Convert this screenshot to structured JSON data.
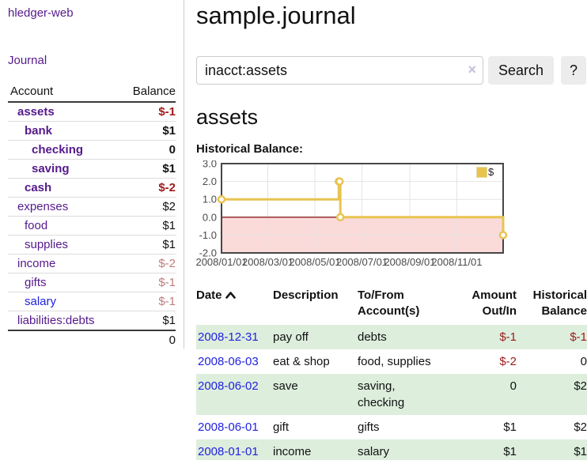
{
  "colors": {
    "link_purple": "#551a8b",
    "link_blue": "#2222dd",
    "negative_strong": "#9e1a1a",
    "negative_soft": "#c07c7c",
    "row_green": "#ddeedd",
    "divider_gray": "#cccccc",
    "button_gray": "#ececec"
  },
  "sidebar": {
    "app_title": "hledger-web",
    "journal_link": "Journal",
    "table": {
      "col_account": "Account",
      "col_balance": "Balance",
      "accounts": [
        {
          "name": "assets",
          "balance": "$-1"
        },
        {
          "name": "bank",
          "balance": "$1"
        },
        {
          "name": "checking",
          "balance": "0"
        },
        {
          "name": "saving",
          "balance": "$1"
        },
        {
          "name": "cash",
          "balance": "$-2"
        },
        {
          "name": "expenses",
          "balance": "$2"
        },
        {
          "name": "food",
          "balance": "$1"
        },
        {
          "name": "supplies",
          "balance": "$1"
        },
        {
          "name": "income",
          "balance": "$-2"
        },
        {
          "name": "gifts",
          "balance": "$-1"
        },
        {
          "name": "salary",
          "balance": "$-1"
        },
        {
          "name": "liabilities:debts",
          "balance": "$1"
        }
      ],
      "total": "0"
    }
  },
  "main": {
    "title": "sample.journal",
    "search": {
      "value": "inacct:assets",
      "clear_icon": "×",
      "search_button": "Search",
      "help_button": "?"
    },
    "account_heading": "assets",
    "chart_heading": "Historical Balance:",
    "register": {
      "columns": {
        "date": "Date",
        "date_sort_icon": "chevron-up",
        "description": "Description",
        "account": "To/From Account(s)",
        "amount": "Amount Out/In",
        "balance": "Historical Balance"
      },
      "rows": [
        {
          "date": "2008-12-31",
          "description": "pay off",
          "account": "debts",
          "amount": "$-1",
          "balance": "$-1"
        },
        {
          "date": "2008-06-03",
          "description": "eat & shop",
          "account": "food, supplies",
          "amount": "$-2",
          "balance": "0"
        },
        {
          "date": "2008-06-02",
          "description": "save",
          "account": "saving,\nchecking",
          "amount": "0",
          "balance": "$2"
        },
        {
          "date": "2008-06-01",
          "description": "gift",
          "account": "gifts",
          "amount": "$1",
          "balance": "$2"
        },
        {
          "date": "2008-01-01",
          "description": "income",
          "account": "salary",
          "amount": "$1",
          "balance": "$1"
        }
      ]
    }
  },
  "chart_data": {
    "type": "line",
    "title": "Historical Balance:",
    "step": true,
    "series": [
      {
        "name": "$",
        "points": [
          [
            "2008/01/01",
            1
          ],
          [
            "2008/06/01",
            2
          ],
          [
            "2008/06/02",
            2
          ],
          [
            "2008/06/03",
            0
          ],
          [
            "2008/12/31",
            -1
          ]
        ]
      }
    ],
    "xrange": [
      "2008/01/01",
      "2008/12/31"
    ],
    "ylim": [
      -2,
      3
    ],
    "x_ticks": [
      "2008/01/01",
      "2008/03/01",
      "2008/05/01",
      "2008/07/01",
      "2008/09/01",
      "2008/11/01"
    ],
    "y_ticks": [
      3,
      2,
      1,
      0,
      -1,
      -2
    ],
    "y_tick_labels": [
      "3.0",
      "2.0",
      "1.0",
      "0.0",
      "-1.0",
      "-2.0"
    ],
    "legend_position": "top-right",
    "grid": true,
    "colors": {
      "series": "#e8c44f",
      "marker_fill": "#ffffff",
      "negative_band": "#fbdada",
      "zero_line": "#8b1d1d",
      "grid_line": "#e4e4e4",
      "plot_border": "#474747",
      "tick_label": "#4b4b4b"
    }
  }
}
